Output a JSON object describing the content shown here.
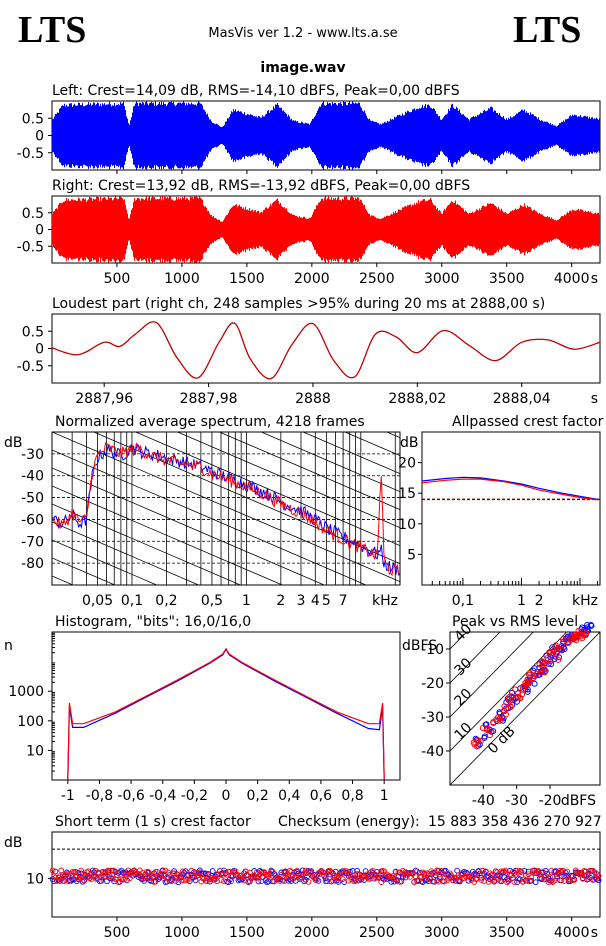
{
  "header": {
    "logo_left": "LTS",
    "logo_right": "LTS",
    "app_title": "MasVis ver 1.2 - www.lts.a.se",
    "file_name": "image.wav"
  },
  "colors": {
    "left": "#0000ff",
    "right": "#ff0000"
  },
  "chart_data": [
    {
      "type": "area",
      "title": "Left: Crest=14,09 dB, RMS=-14,10 dBFS, Peak=0,00 dBFS",
      "ylim": [
        -1,
        1
      ],
      "yticks": [
        "0.5",
        "0",
        "-0.5"
      ],
      "xlim": [
        0,
        4218
      ],
      "series": [
        {
          "name": "Left",
          "color": "#0000ff"
        }
      ]
    },
    {
      "type": "area",
      "title": "Right: Crest=13,92 dB, RMS=-13,92 dBFS, Peak=0,00 dBFS",
      "ylim": [
        -1,
        1
      ],
      "yticks": [
        "0.5",
        "0",
        "-0.5"
      ],
      "xlim": [
        0,
        4218
      ],
      "xticks": [
        "500",
        "1000",
        "1500",
        "2000",
        "2500",
        "3000",
        "3500",
        "4000"
      ],
      "xunit": "s",
      "series": [
        {
          "name": "Right",
          "color": "#ff0000"
        }
      ]
    },
    {
      "type": "line",
      "title": "Loudest part (right ch, 248 samples >95% during 20 ms at 2888,00 s)",
      "ylim": [
        -1,
        1
      ],
      "yticks": [
        "0.5",
        "0",
        "-0.5"
      ],
      "xlim": [
        2887.95,
        2888.055
      ],
      "xticks": [
        "2887,96",
        "2887,98",
        "2888",
        "2888,02",
        "2888,04"
      ],
      "xunit": "s",
      "x": [
        2887.95,
        2887.955,
        2887.96,
        2887.963,
        2887.966,
        2887.97,
        2887.974,
        2887.978,
        2887.982,
        2887.985,
        2887.988,
        2887.992,
        2887.996,
        2888.0,
        2888.004,
        2888.008,
        2888.012,
        2888.016,
        2888.02,
        2888.025,
        2888.03,
        2888.035,
        2888.04,
        2888.045,
        2888.05,
        2888.055
      ],
      "y": [
        0.02,
        -0.18,
        0.18,
        0.06,
        0.42,
        0.75,
        -0.28,
        -0.85,
        0.18,
        0.73,
        -0.3,
        -0.87,
        0.12,
        0.72,
        -0.35,
        -0.82,
        0.42,
        0.33,
        -0.12,
        0.52,
        0.08,
        -0.35,
        0.18,
        0.25,
        -0.02,
        0.18
      ],
      "series": [
        {
          "name": "Right",
          "color": "#c00000"
        }
      ]
    },
    {
      "type": "line",
      "title": "Normalized average spectrum, 4218 frames",
      "ylabel": "dB",
      "xscale": "log",
      "xunit": "kHz",
      "xlim": [
        0.02,
        22
      ],
      "ylim": [
        -90,
        -20
      ],
      "yticks": [
        "-30",
        "-40",
        "-50",
        "-60",
        "-70",
        "-80"
      ],
      "xticks": [
        "0,05",
        "0,1",
        "0,2",
        "0,5",
        "1",
        "2",
        "3",
        "4",
        "5",
        "7"
      ],
      "x": [
        0.02,
        0.025,
        0.03,
        0.035,
        0.04,
        0.045,
        0.05,
        0.06,
        0.08,
        0.1,
        0.12,
        0.15,
        0.2,
        0.3,
        0.4,
        0.5,
        0.7,
        1,
        1.5,
        2,
        3,
        4,
        5,
        7,
        10,
        14,
        15,
        16,
        18,
        22
      ],
      "series": [
        {
          "name": "Left",
          "color": "#0000ff",
          "values": [
            -60,
            -62,
            -58,
            -62,
            -60,
            -40,
            -32,
            -28,
            -31,
            -27,
            -29,
            -30,
            -32,
            -34,
            -36,
            -38,
            -41,
            -44,
            -48,
            -52,
            -56,
            -60,
            -64,
            -68,
            -72,
            -76,
            -74,
            -80,
            -82,
            -83
          ]
        },
        {
          "name": "Right",
          "color": "#ff0000",
          "values": [
            -60,
            -63,
            -57,
            -61,
            -60,
            -38,
            -31,
            -27,
            -30,
            -28,
            -28,
            -31,
            -33,
            -35,
            -36,
            -39,
            -42,
            -45,
            -49,
            -53,
            -57,
            -61,
            -65,
            -69,
            -73,
            -77,
            -36,
            -80,
            -83,
            -84
          ]
        }
      ]
    },
    {
      "type": "line",
      "title": "Allpassed crest factor",
      "ylabel": "dB",
      "xscale": "log",
      "xunit": "kHz",
      "xlim": [
        0.02,
        22
      ],
      "ylim": [
        0,
        25
      ],
      "yticks": [
        "20",
        "15",
        "10",
        "5"
      ],
      "xticks": [
        "0,1",
        "1",
        "2"
      ],
      "reference": 14,
      "x": [
        0.02,
        0.05,
        0.1,
        0.2,
        0.5,
        1,
        2,
        5,
        10,
        20
      ],
      "series": [
        {
          "name": "Left",
          "color": "#0000ff",
          "values": [
            17,
            17.4,
            17.6,
            17.5,
            17,
            16.5,
            15.8,
            15,
            14.5,
            14
          ]
        },
        {
          "name": "Right",
          "color": "#ff0000",
          "values": [
            16.7,
            17.1,
            17.3,
            17.3,
            16.9,
            16.3,
            15.5,
            14.8,
            14.3,
            13.9
          ]
        }
      ]
    },
    {
      "type": "line",
      "title": "Histogram, \"bits\": 16,0/16,0",
      "ylabel": "n",
      "yscale": "log",
      "xlim": [
        -1.1,
        1.1
      ],
      "ylim": [
        1,
        100000
      ],
      "yticks": [
        "1000",
        "100",
        "10"
      ],
      "xticks": [
        "-1",
        "-0,8",
        "-0,6",
        "-0,4",
        "-0,2",
        "0",
        "0,2",
        "0,4",
        "0,6",
        "0,8",
        "1"
      ],
      "x": [
        -1,
        -0.99,
        -0.97,
        -0.9,
        -0.7,
        -0.5,
        -0.3,
        -0.1,
        -0.02,
        0,
        0.02,
        0.1,
        0.3,
        0.5,
        0.7,
        0.9,
        0.97,
        0.99,
        1
      ],
      "series": [
        {
          "name": "Left",
          "color": "#0000ff",
          "values": [
            1,
            300,
            60,
            60,
            180,
            650,
            2300,
            9000,
            17000,
            26000,
            17000,
            9000,
            2300,
            650,
            180,
            55,
            50,
            300,
            1
          ]
        },
        {
          "name": "Right",
          "color": "#ff0000",
          "values": [
            1,
            400,
            80,
            80,
            200,
            700,
            2500,
            9500,
            18000,
            27000,
            18000,
            9500,
            2500,
            700,
            200,
            80,
            80,
            400,
            1
          ]
        }
      ]
    },
    {
      "type": "scatter",
      "title": "Peak vs RMS level",
      "ylabel": "dBFS",
      "xlabel": "dBFS",
      "xlim": [
        -50,
        -5
      ],
      "ylim": [
        -50,
        -5
      ],
      "xticks": [
        "-40",
        "-30",
        "-20"
      ],
      "yticks": [
        "-10",
        "-20",
        "-30",
        "-40"
      ],
      "diag_labels": [
        "0 dB",
        "10",
        "20",
        "30",
        "40"
      ],
      "series": [
        {
          "name": "Left",
          "color": "#0000ff",
          "x": [
            -41,
            -38,
            -35,
            -32,
            -30,
            -28,
            -26,
            -24,
            -22,
            -20,
            -18,
            -16,
            -14,
            -12,
            -10,
            -9
          ],
          "y": [
            -37,
            -33,
            -30,
            -26,
            -24,
            -22,
            -19,
            -17,
            -15,
            -13,
            -11,
            -9,
            -7,
            -6,
            -5,
            -4
          ]
        },
        {
          "name": "Right",
          "color": "#ff0000",
          "x": [
            -42,
            -39,
            -36,
            -33,
            -31,
            -29,
            -27,
            -25,
            -23,
            -21,
            -19,
            -17,
            -15,
            -13,
            -11,
            -10
          ],
          "y": [
            -38,
            -34,
            -31,
            -28,
            -25,
            -23,
            -20,
            -18,
            -16,
            -14,
            -12,
            -10,
            -8,
            -7,
            -6,
            -5
          ]
        }
      ]
    },
    {
      "type": "scatter",
      "title": "Short term (1 s) crest factor",
      "checksum_label": "Checksum (energy):",
      "checksum_value": "15 883 358 436 270 927",
      "ylabel": "dB",
      "yscale": "log",
      "ylim": [
        4,
        30
      ],
      "yticks": [
        "10"
      ],
      "reference": 20,
      "xlim": [
        0,
        4218
      ],
      "xticks": [
        "500",
        "1000",
        "1500",
        "2000",
        "2500",
        "3000",
        "3500",
        "4000"
      ],
      "xunit": "s",
      "series": [
        {
          "name": "Left",
          "color": "#0000ff"
        },
        {
          "name": "Right",
          "color": "#ff0000"
        }
      ]
    }
  ]
}
